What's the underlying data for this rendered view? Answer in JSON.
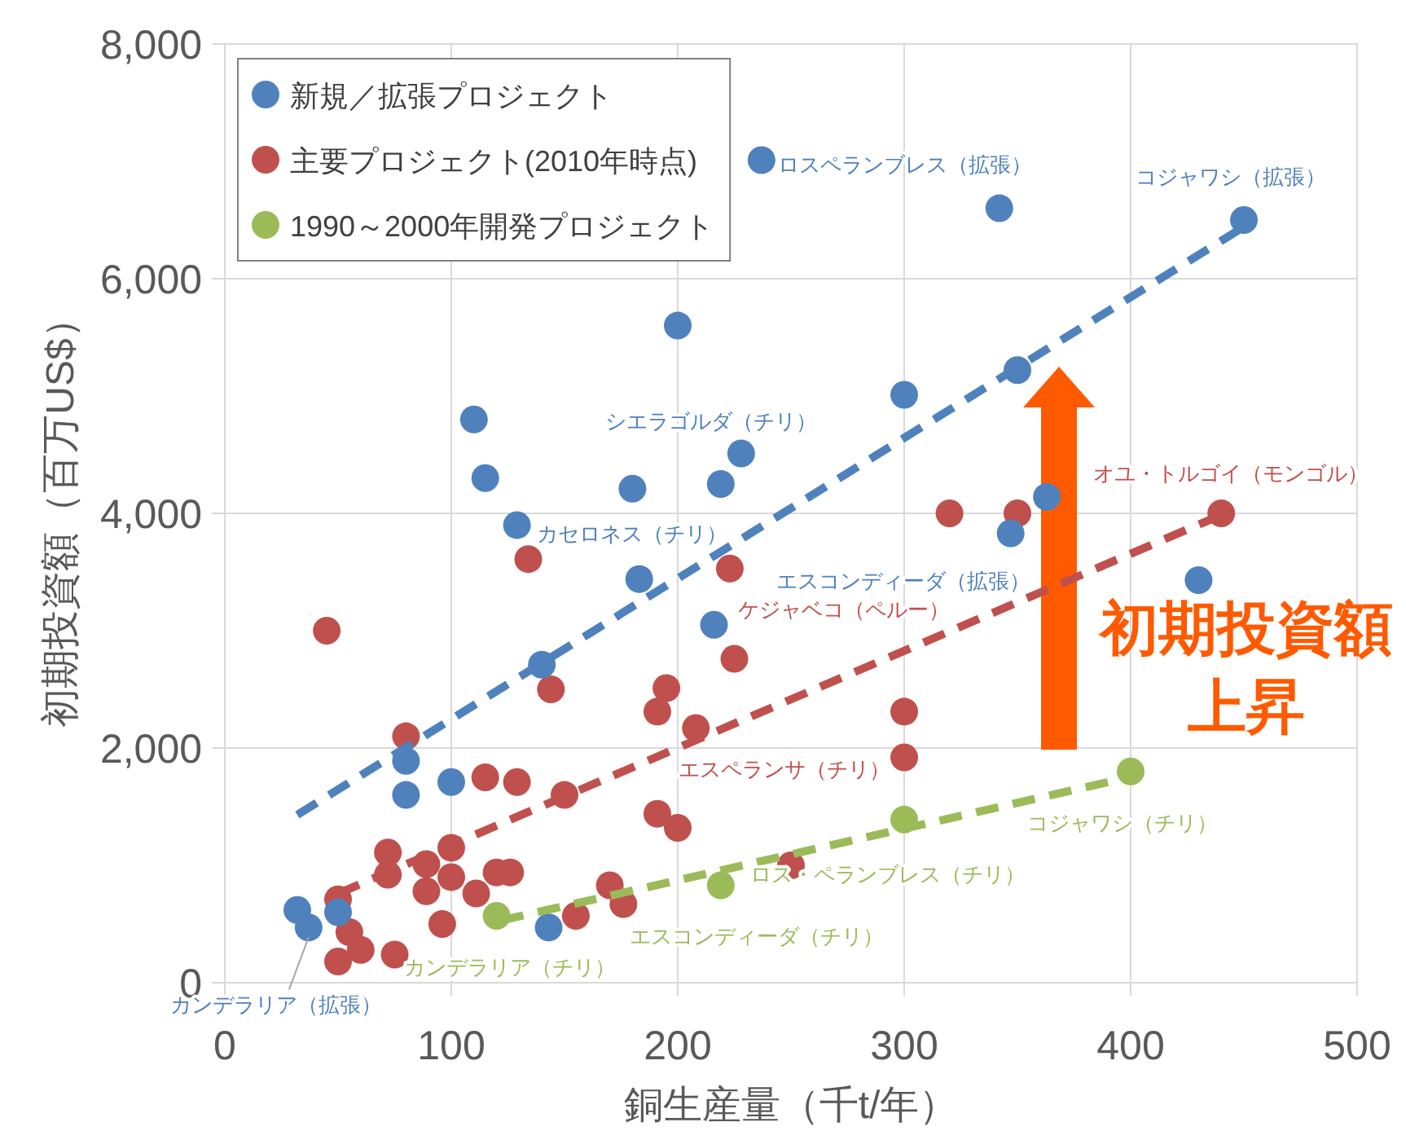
{
  "chart_data": {
    "type": "scatter",
    "xlabel": "銅生産量（千t/年）",
    "ylabel": "初期投資額（百万US$）",
    "xlim": [
      0,
      500
    ],
    "xticks": [
      0,
      100,
      200,
      300,
      400,
      500
    ],
    "ylim": [
      0,
      8000
    ],
    "yticks": [
      0,
      {
        "value": 2000,
        "label": "2,000"
      },
      {
        "value": 4000,
        "label": "4,000"
      },
      {
        "value": 6000,
        "label": "6,000"
      },
      {
        "value": 8000,
        "label": "8,000"
      }
    ],
    "grid": true,
    "legend": "top left",
    "marker": "circle",
    "series": [
      {
        "name": "新規／拡張プロジェクト",
        "color": "#4f81bd",
        "x": [
          32,
          37,
          50,
          80,
          80,
          100,
          110,
          115,
          129,
          140,
          143,
          180,
          183,
          200,
          219,
          228,
          216,
          237,
          300,
          342,
          350,
          347,
          363,
          430,
          450
        ],
        "values": [
          620,
          470,
          600,
          1890,
          1600,
          1710,
          4800,
          4300,
          3900,
          2710,
          470,
          4210,
          3440,
          5600,
          4250,
          4510,
          3050,
          7010,
          5010,
          6600,
          5220,
          3830,
          4140,
          3430,
          6500
        ]
      },
      {
        "name": "主要プロジェクト(2010年時点)",
        "color": "#c0504d",
        "x": [
          45,
          50,
          55,
          50,
          60,
          75,
          72,
          72,
          80,
          89,
          89,
          100,
          100,
          96,
          111,
          115,
          120,
          126,
          129,
          134,
          144,
          150,
          155,
          170,
          176,
          191,
          195,
          191,
          200,
          208,
          223,
          225,
          320,
          350,
          440,
          300,
          300,
          250
        ],
        "values": [
          3000,
          710,
          430,
          180,
          280,
          240,
          1110,
          920,
          2100,
          1010,
          780,
          1150,
          900,
          500,
          760,
          1750,
          940,
          940,
          1710,
          3610,
          2500,
          1600,
          570,
          830,
          670,
          2310,
          2510,
          1440,
          1320,
          2170,
          3530,
          2760,
          4000,
          4000,
          4000,
          2310,
          1920,
          1000
        ]
      },
      {
        "name": "1990～2000年開発プロジェクト",
        "color": "#9bbb59",
        "x": [
          120,
          219,
          300,
          400
        ],
        "values": [
          570,
          830,
          1390,
          1800
        ]
      },
      {
        "type": "line",
        "color": "#4f81bd",
        "line_style": "dashed",
        "marker": "none",
        "x": [
          32,
          449
        ],
        "values": [
          1430,
          6430
        ]
      },
      {
        "type": "line",
        "color": "#c0504d",
        "line_style": "dashed",
        "marker": "none",
        "x": [
          50,
          438
        ],
        "values": [
          760,
          3970
        ]
      },
      {
        "type": "line",
        "color": "#9bbb59",
        "line_style": "dashed",
        "marker": "none",
        "x": [
          122,
          397
        ],
        "values": [
          530,
          1740
        ]
      }
    ],
    "annotations": [
      {
        "text": "ロスペランブレス（拡張）",
        "x": 237,
        "y": 7010
      },
      {
        "text": "コジャワシ（拡張）",
        "x": 450,
        "y": 6500
      },
      {
        "text": "シエラゴルダ（チリ）",
        "x": 219,
        "y": 4250
      },
      {
        "text": "カセロネス（チリ）",
        "x": 129,
        "y": 3900
      },
      {
        "text": "エスコンディーダ（拡張）",
        "x": 347,
        "y": 3830
      },
      {
        "text": "カンデラリア（拡張）",
        "x": 37,
        "y": 470
      },
      {
        "text": "オユ・トルゴイ（モンゴル）",
        "x": 440,
        "y": 4000
      },
      {
        "text": "ケジャベコ（ペルー）",
        "x": 225,
        "y": 2760
      },
      {
        "text": "エスペランサ（チリ）",
        "x": 191,
        "y": 2310
      },
      {
        "text": "カンデラリア（チリ）",
        "x": 120,
        "y": 570
      },
      {
        "text": "エスコンディーダ（チリ）",
        "x": 219,
        "y": 830
      },
      {
        "text": "ロス・ペランブレス（チリ）",
        "x": 300,
        "y": 1390
      },
      {
        "text": "コジャワシ（チリ）",
        "x": 400,
        "y": 1800
      },
      "初期投資額",
      "上昇"
    ]
  }
}
